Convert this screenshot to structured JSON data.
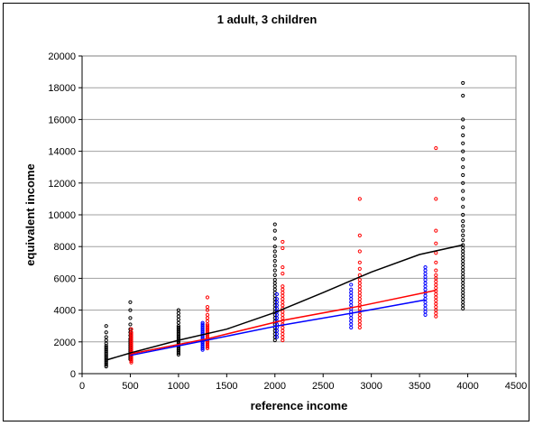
{
  "chart_data": {
    "type": "scatter",
    "title": "1 adult, 3 children",
    "xlabel": "reference income",
    "ylabel": "equivalent income",
    "xlim": [
      0,
      4500
    ],
    "ylim": [
      0,
      20000
    ],
    "xticks": [
      0,
      500,
      1000,
      1500,
      2000,
      2500,
      3000,
      3500,
      4000,
      4500
    ],
    "yticks": [
      0,
      2000,
      4000,
      6000,
      8000,
      10000,
      12000,
      14000,
      16000,
      18000,
      20000
    ],
    "grid": "horizontal",
    "legend": "none",
    "series": [
      {
        "color": "#000000",
        "marker": "open-circle",
        "points": [
          {
            "x": 250,
            "y_values": [
              450,
              550,
              650,
              750,
              850,
              950,
              1050,
              1150,
              1250,
              1350,
              1450,
              1550,
              1650,
              1750,
              1900,
              2100,
              2300,
              2600,
              3000
            ]
          },
          {
            "x": 500,
            "y_values": [
              900,
              1000,
              1100,
              1200,
              1300,
              1400,
              1500,
              1600,
              1700,
              1800,
              1900,
              2000,
              2100,
              2200,
              2400,
              2600,
              2800,
              3100,
              3500,
              4000,
              4500
            ]
          },
          {
            "x": 1000,
            "y_values": [
              1200,
              1300,
              1400,
              1500,
              1600,
              1700,
              1800,
              1900,
              2000,
              2100,
              2200,
              2300,
              2400,
              2500,
              2600,
              2700,
              2800,
              2900,
              3000,
              3200,
              3400,
              3600,
              3800,
              4000
            ]
          },
          {
            "x": 2000,
            "y_values": [
              2100,
              2300,
              2500,
              2700,
              2900,
              3100,
              3300,
              3500,
              3700,
              3900,
              4100,
              4300,
              4500,
              4700,
              4900,
              5100,
              5300,
              5500,
              5700,
              5900,
              6200,
              6500,
              6800,
              7100,
              7400,
              7700,
              8000,
              8500,
              9000,
              9400
            ]
          },
          {
            "x": 3950,
            "y_values": [
              4100,
              4300,
              4500,
              4700,
              4900,
              5100,
              5300,
              5500,
              5700,
              5900,
              6100,
              6300,
              6500,
              6700,
              6900,
              7100,
              7300,
              7500,
              7700,
              7900,
              8100,
              8400,
              8700,
              9000,
              9300,
              9600,
              10000,
              10500,
              11000,
              11500,
              12000,
              12500,
              13000,
              13500,
              14000,
              14500,
              15000,
              15500,
              16000,
              17500,
              18300
            ]
          }
        ],
        "trend": {
          "x": [
            250,
            500,
            1000,
            1500,
            2000,
            2500,
            3000,
            3500,
            3950
          ],
          "y": [
            850,
            1300,
            2100,
            2800,
            3850,
            5100,
            6400,
            7500,
            8100
          ]
        }
      },
      {
        "color": "#ff0000",
        "marker": "open-circle",
        "points": [
          {
            "x": 510,
            "y_values": [
              700,
              800,
              900,
              1000,
              1100,
              1200,
              1300,
              1400,
              1500,
              1600,
              1700,
              1800,
              1900,
              2000,
              2100,
              2200,
              2300,
              2400,
              2500,
              2600,
              2800
            ]
          },
          {
            "x": 1300,
            "y_values": [
              1600,
              1700,
              1800,
              1900,
              2000,
              2100,
              2200,
              2300,
              2400,
              2500,
              2600,
              2700,
              2800,
              2900,
              3000,
              3100,
              3300,
              3500,
              3700,
              4000,
              4200,
              4800
            ]
          },
          {
            "x": 2080,
            "y_values": [
              2100,
              2300,
              2500,
              2700,
              2900,
              3100,
              3300,
              3500,
              3700,
              3900,
              4100,
              4300,
              4500,
              4700,
              4900,
              5100,
              5300,
              5500,
              6300,
              6700,
              7900,
              8300
            ]
          },
          {
            "x": 2880,
            "y_values": [
              2900,
              3100,
              3300,
              3500,
              3700,
              3900,
              4100,
              4300,
              4500,
              4700,
              4900,
              5100,
              5300,
              5500,
              5700,
              5900,
              6200,
              6600,
              7000,
              7700,
              8700,
              11000
            ]
          },
          {
            "x": 3670,
            "y_values": [
              3600,
              3800,
              4000,
              4200,
              4400,
              4600,
              4800,
              5000,
              5200,
              5400,
              5600,
              5800,
              6000,
              6200,
              6500,
              7000,
              7600,
              8200,
              9000,
              11000,
              14200
            ]
          }
        ],
        "trend": {
          "x": [
            510,
            1300,
            2080,
            2880,
            3670
          ],
          "y": [
            1250,
            2200,
            3350,
            4250,
            5250
          ]
        }
      },
      {
        "color": "#0000ff",
        "marker": "open-circle",
        "points": [
          {
            "x": 1250,
            "y_values": [
              1500,
              1600,
              1700,
              1800,
              1900,
              2000,
              2100,
              2200,
              2300,
              2400,
              2500,
              2600,
              2700,
              2800,
              2900,
              3000,
              3100,
              3200
            ]
          },
          {
            "x": 2020,
            "y_values": [
              2300,
              2500,
              2700,
              2900,
              3100,
              3300,
              3500,
              3700,
              3900,
              4100,
              4300,
              4500,
              4700,
              5000
            ]
          },
          {
            "x": 2790,
            "y_values": [
              2900,
              3100,
              3300,
              3500,
              3700,
              3900,
              4100,
              4300,
              4500,
              4700,
              4900,
              5100,
              5300,
              5600
            ]
          },
          {
            "x": 3560,
            "y_values": [
              3700,
              3900,
              4100,
              4300,
              4500,
              4700,
              4900,
              5100,
              5300,
              5500,
              5700,
              5900,
              6100,
              6300,
              6500,
              6700
            ]
          }
        ],
        "trend": {
          "x": [
            500,
            1250,
            2020,
            2790,
            3560
          ],
          "y": [
            1150,
            2050,
            3000,
            3800,
            4650
          ]
        }
      }
    ]
  }
}
